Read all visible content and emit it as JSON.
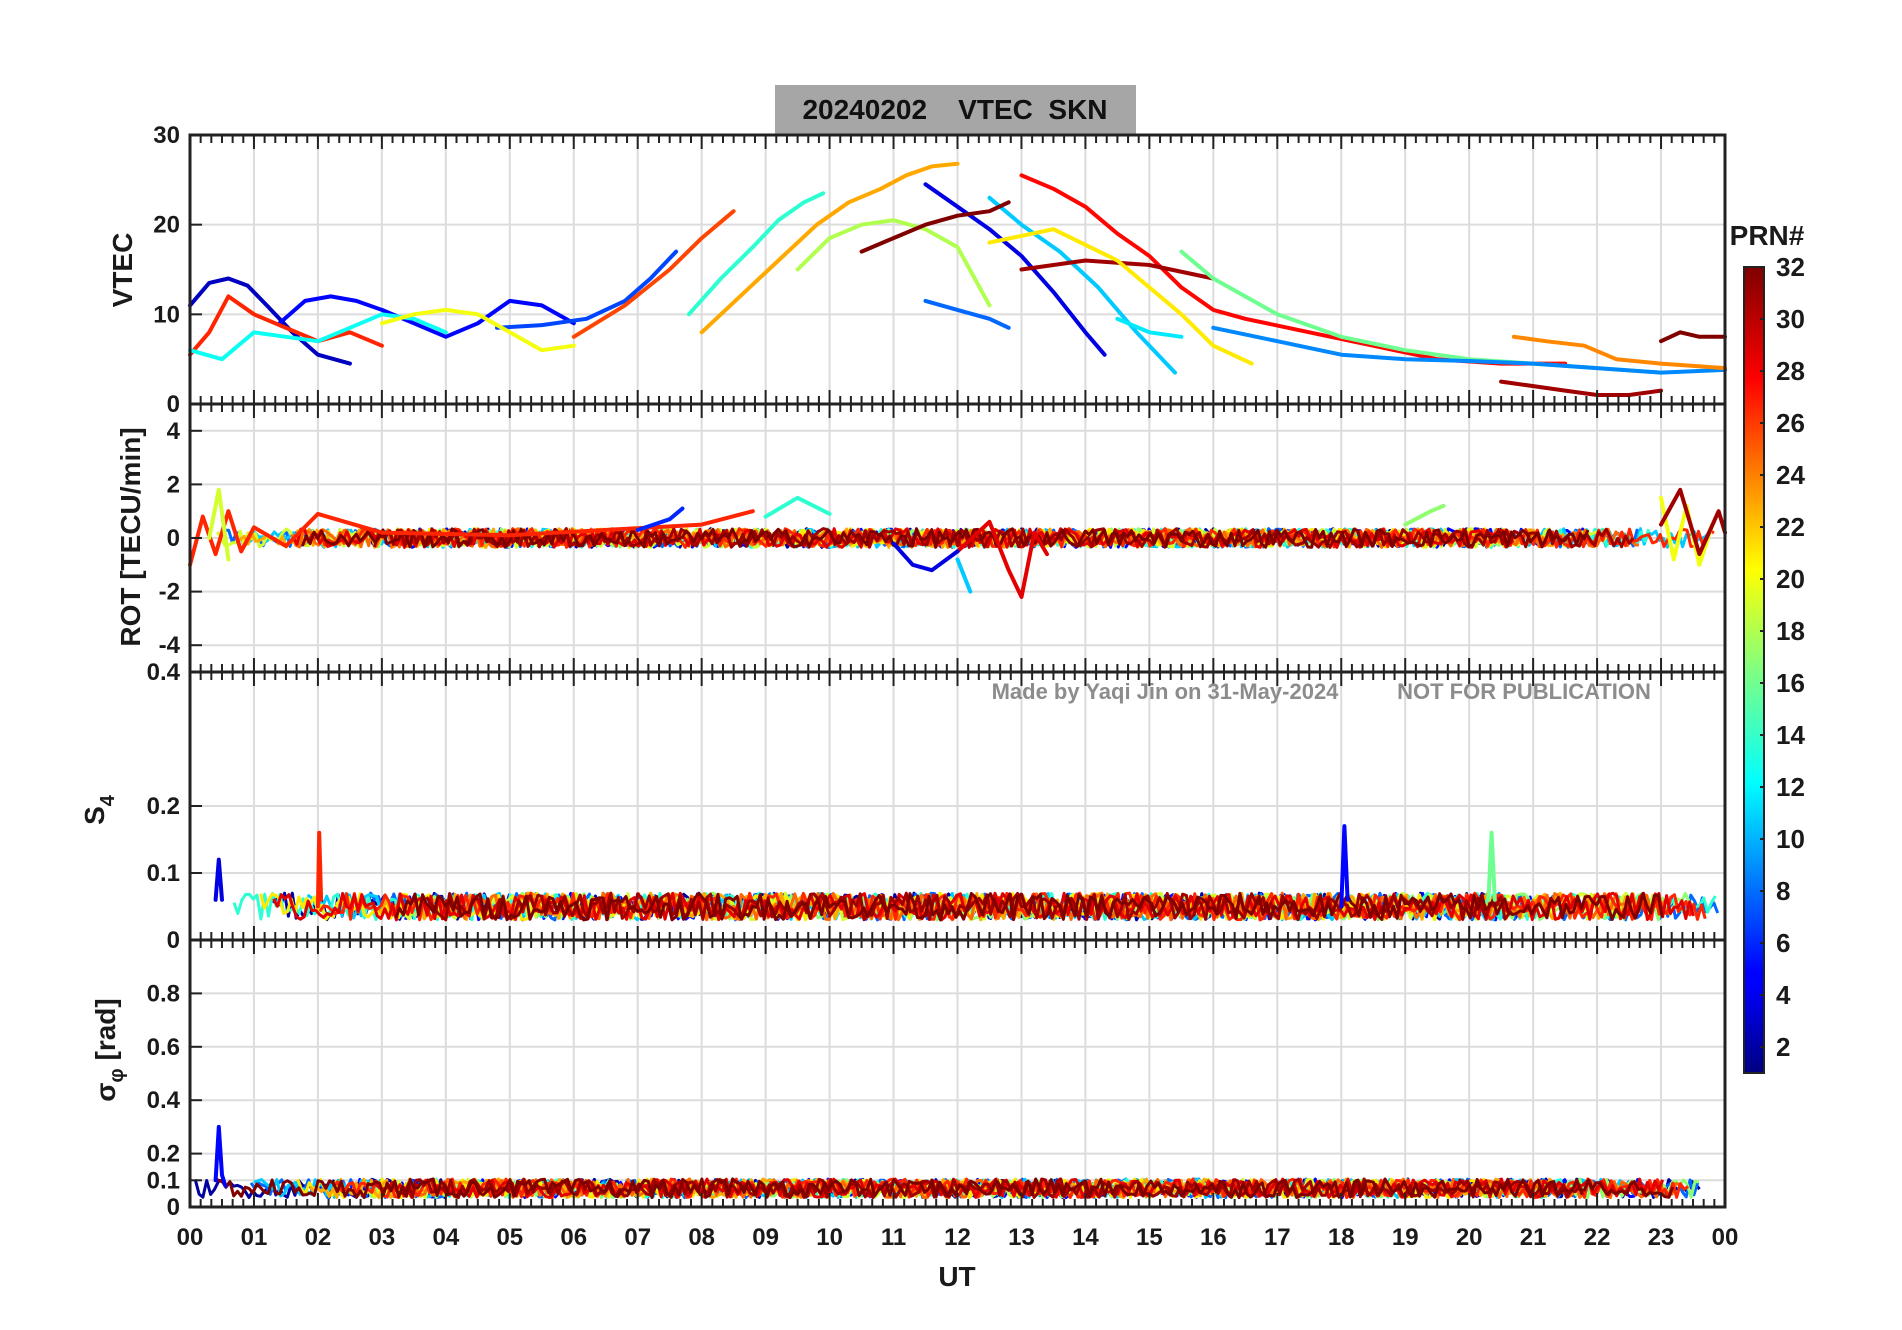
{
  "figure": {
    "title": "20240202    VTEC  SKN",
    "xlabel": "UT",
    "xticks": [
      "00",
      "01",
      "02",
      "03",
      "04",
      "05",
      "06",
      "07",
      "08",
      "09",
      "10",
      "11",
      "12",
      "13",
      "14",
      "15",
      "16",
      "17",
      "18",
      "19",
      "20",
      "21",
      "22",
      "23",
      "00"
    ],
    "watermark_author": "Made by Yaqi Jin on 31-May-2024",
    "watermark_notice": "NOT FOR PUBLICATION",
    "colorbar": {
      "label": "PRN#",
      "ticks": [
        "2",
        "4",
        "6",
        "8",
        "10",
        "12",
        "14",
        "16",
        "18",
        "20",
        "22",
        "24",
        "26",
        "28",
        "30",
        "32"
      ],
      "range": [
        1,
        32
      ],
      "colormap": "jet"
    }
  },
  "chart_data": [
    {
      "type": "line",
      "panel": "vtec",
      "ylabel": "VTEC",
      "ylim": [
        0,
        30
      ],
      "yticks": [
        {
          "v": 0,
          "label": "0"
        },
        {
          "v": 10,
          "label": "10"
        },
        {
          "v": 20,
          "label": "20"
        },
        {
          "v": 30,
          "label": "30"
        }
      ],
      "xlim": [
        0,
        24
      ],
      "series": [
        {
          "prn": 3,
          "x": [
            0.0,
            0.3,
            0.6,
            0.9,
            1.2,
            1.6,
            2.0,
            2.5
          ],
          "y": [
            11.0,
            13.5,
            14.0,
            13.2,
            11.0,
            8.0,
            5.5,
            4.5
          ]
        },
        {
          "prn": 5,
          "x": [
            1.4,
            1.8,
            2.2,
            2.6,
            3.0,
            3.5,
            4.0,
            4.5,
            5.0,
            5.5,
            6.0
          ],
          "y": [
            9.0,
            11.5,
            12.0,
            11.5,
            10.5,
            9.0,
            7.5,
            9.0,
            11.5,
            11.0,
            9.0
          ]
        },
        {
          "prn": 7,
          "x": [
            4.8,
            5.5,
            6.2,
            6.8,
            7.2,
            7.6
          ],
          "y": [
            8.5,
            8.8,
            9.5,
            11.5,
            14.0,
            17.0
          ]
        },
        {
          "prn": 14,
          "x": [
            7.8,
            8.3,
            8.8,
            9.2,
            9.6,
            9.9
          ],
          "y": [
            10.0,
            14.0,
            17.5,
            20.5,
            22.5,
            23.5
          ]
        },
        {
          "prn": 18,
          "x": [
            9.5,
            10.0,
            10.5,
            11.0,
            11.5,
            12.0,
            12.5
          ],
          "y": [
            15.0,
            18.5,
            20.0,
            20.5,
            19.5,
            17.5,
            11.0
          ]
        },
        {
          "prn": 23,
          "x": [
            8.0,
            8.6,
            9.2,
            9.8,
            10.3,
            10.8,
            11.2,
            11.6,
            12.0
          ],
          "y": [
            8.0,
            12.0,
            16.0,
            20.0,
            22.5,
            24.0,
            25.5,
            26.5,
            26.8
          ]
        },
        {
          "prn": 26,
          "x": [
            6.0,
            6.8,
            7.5,
            8.0,
            8.5
          ],
          "y": [
            7.5,
            11.0,
            15.0,
            18.5,
            21.5
          ]
        },
        {
          "prn": 11,
          "x": [
            12.5,
            13.0,
            13.6,
            14.2,
            14.8,
            15.4
          ],
          "y": [
            23.0,
            20.0,
            17.0,
            13.0,
            8.0,
            3.5
          ]
        },
        {
          "prn": 4,
          "x": [
            11.5,
            12.0,
            12.5,
            13.0,
            13.5,
            14.0,
            14.3
          ],
          "y": [
            24.5,
            22.0,
            19.5,
            16.5,
            12.5,
            8.0,
            5.5
          ]
        },
        {
          "prn": 28,
          "x": [
            13.0,
            13.5,
            14.0,
            14.5,
            15.0,
            15.5,
            16.0,
            16.5,
            17.5,
            18.5,
            19.5,
            20.5,
            21.5
          ],
          "y": [
            25.5,
            24.0,
            22.0,
            19.0,
            16.5,
            13.0,
            10.5,
            9.5,
            8.0,
            6.5,
            5.0,
            4.5,
            4.5
          ]
        },
        {
          "prn": 32,
          "x": [
            10.5,
            11.0,
            11.5,
            12.0,
            12.5,
            12.8
          ],
          "y": [
            17.0,
            18.5,
            20.0,
            21.0,
            21.5,
            22.5
          ]
        },
        {
          "prn": 31,
          "x": [
            13.0,
            14.0,
            15.0,
            16.0
          ],
          "y": [
            15.0,
            16.0,
            15.5,
            14.0
          ]
        },
        {
          "prn": 16,
          "x": [
            15.5,
            16.0,
            17.0,
            18.0,
            19.0,
            20.0,
            21.0,
            22.0,
            23.0
          ],
          "y": [
            17.0,
            14.0,
            10.0,
            7.5,
            6.0,
            5.0,
            4.5,
            4.0,
            3.5
          ]
        },
        {
          "prn": 21,
          "x": [
            12.5,
            13.5,
            14.5,
            15.5,
            16.0,
            16.6
          ],
          "y": [
            18.0,
            19.5,
            16.0,
            10.0,
            6.5,
            4.5
          ]
        },
        {
          "prn": 9,
          "x": [
            16.0,
            17.0,
            18.0,
            19.0,
            20.0,
            21.0,
            22.0,
            23.0,
            24.0
          ],
          "y": [
            8.5,
            7.0,
            5.5,
            5.0,
            4.8,
            4.5,
            4.0,
            3.5,
            3.8
          ]
        },
        {
          "prn": 24,
          "x": [
            20.7,
            21.2,
            21.8,
            22.3,
            23.0,
            24.0
          ],
          "y": [
            7.5,
            7.0,
            6.5,
            5.0,
            4.5,
            4.0
          ]
        },
        {
          "prn": 31,
          "x": [
            20.5,
            21.5,
            22.0,
            22.5,
            23.0
          ],
          "y": [
            2.5,
            1.5,
            1.0,
            1.0,
            1.5
          ]
        },
        {
          "prn": 32,
          "x": [
            23.0,
            23.3,
            23.6,
            24.0
          ],
          "y": [
            7.0,
            8.0,
            7.5,
            7.5
          ]
        },
        {
          "prn": 27,
          "x": [
            0.0,
            0.3,
            0.6,
            1.0,
            1.5,
            2.0,
            2.5,
            3.0
          ],
          "y": [
            5.5,
            8.0,
            12.0,
            10.0,
            8.5,
            7.0,
            8.0,
            6.5
          ]
        },
        {
          "prn": 13,
          "x": [
            0.0,
            0.5,
            1.0,
            1.5,
            2.0,
            2.5,
            3.0,
            3.5,
            4.0
          ],
          "y": [
            6.0,
            5.0,
            8.0,
            7.5,
            7.0,
            8.5,
            10.0,
            9.5,
            8.0
          ]
        },
        {
          "prn": 20,
          "x": [
            3.0,
            3.5,
            4.0,
            4.5,
            5.0,
            5.5,
            6.0
          ],
          "y": [
            9.0,
            10.0,
            10.5,
            10.0,
            8.0,
            6.0,
            6.5
          ]
        },
        {
          "prn": 8,
          "x": [
            11.5,
            12.0,
            12.5,
            12.8
          ],
          "y": [
            11.5,
            10.5,
            9.5,
            8.5
          ]
        },
        {
          "prn": 12,
          "x": [
            14.5,
            15.0,
            15.5
          ],
          "y": [
            9.5,
            8.0,
            7.5
          ]
        }
      ]
    },
    {
      "type": "line",
      "panel": "rot",
      "ylabel": "ROT [TECU/min]",
      "ylim": [
        -5,
        5
      ],
      "yticks": [
        {
          "v": -4,
          "label": "-4"
        },
        {
          "v": -2,
          "label": "-2"
        },
        {
          "v": 0,
          "label": "0"
        },
        {
          "v": 2,
          "label": "2"
        },
        {
          "v": 4,
          "label": "4"
        }
      ],
      "xlim": [
        0,
        24
      ],
      "series": [
        {
          "prn": 27,
          "x": [
            0.0,
            0.2,
            0.4,
            0.6,
            0.8,
            1.0,
            1.5,
            2.0,
            3.0,
            5.0,
            8.0,
            8.8
          ],
          "y": [
            -1.0,
            0.8,
            -0.6,
            1.0,
            -0.5,
            0.4,
            -0.3,
            0.9,
            0.2,
            0.1,
            0.5,
            1.0
          ]
        },
        {
          "prn": 19,
          "x": [
            0.3,
            0.45,
            0.6
          ],
          "y": [
            0.0,
            1.8,
            -0.8
          ]
        },
        {
          "prn": 29,
          "x": [
            12.0,
            12.5,
            12.8,
            13.0,
            13.2,
            13.4
          ],
          "y": [
            -0.5,
            0.6,
            -1.2,
            -2.2,
            0.2,
            -0.6
          ]
        },
        {
          "prn": 4,
          "x": [
            11.0,
            11.3,
            11.6,
            12.0
          ],
          "y": [
            -0.2,
            -1.0,
            -1.2,
            -0.5
          ]
        },
        {
          "prn": 11,
          "x": [
            12.0,
            12.2
          ],
          "y": [
            -0.8,
            -2.0
          ]
        },
        {
          "prn": 20,
          "x": [
            23.0,
            23.2,
            23.4,
            23.6,
            23.8
          ],
          "y": [
            1.5,
            -0.8,
            1.2,
            -1.0,
            0.5
          ]
        },
        {
          "prn": 31,
          "x": [
            23.0,
            23.3,
            23.6,
            23.9,
            24.0
          ],
          "y": [
            0.5,
            1.8,
            -0.6,
            1.0,
            0.2
          ]
        },
        {
          "prn": 14,
          "x": [
            9.0,
            9.5,
            10.0
          ],
          "y": [
            0.8,
            1.5,
            0.9
          ]
        },
        {
          "prn": 6,
          "x": [
            7.0,
            7.5,
            7.7
          ],
          "y": [
            0.3,
            0.7,
            1.1
          ]
        },
        {
          "prn": 17,
          "x": [
            19.0,
            19.4,
            19.6
          ],
          "y": [
            0.5,
            1.0,
            1.2
          ]
        }
      ]
    },
    {
      "type": "line",
      "panel": "s4",
      "ylabel": "S4",
      "ylim": [
        0,
        0.4
      ],
      "yticks": [
        {
          "v": 0,
          "label": "0"
        },
        {
          "v": 0.1,
          "label": "0.1"
        },
        {
          "v": 0.2,
          "label": "0.2"
        },
        {
          "v": 0.4,
          "label": "0.4"
        }
      ],
      "xlim": [
        0,
        24
      ],
      "series": [
        {
          "prn": 27,
          "x": [
            2.0,
            2.02,
            2.05
          ],
          "y": [
            0.05,
            0.16,
            0.06
          ]
        },
        {
          "prn": 5,
          "x": [
            18.0,
            18.05,
            18.1
          ],
          "y": [
            0.05,
            0.17,
            0.06
          ]
        },
        {
          "prn": 16,
          "x": [
            20.3,
            20.35,
            20.4
          ],
          "y": [
            0.06,
            0.16,
            0.06
          ]
        },
        {
          "prn": 4,
          "x": [
            0.4,
            0.45,
            0.5
          ],
          "y": [
            0.06,
            0.12,
            0.06
          ]
        }
      ]
    },
    {
      "type": "line",
      "panel": "sigma_phi",
      "ylabel": "σφ [rad]",
      "ylim": [
        0,
        1
      ],
      "yticks": [
        {
          "v": 0,
          "label": "0"
        },
        {
          "v": 0.1,
          "label": "0.1"
        },
        {
          "v": 0.2,
          "label": "0.2"
        },
        {
          "v": 0.4,
          "label": "0.4"
        },
        {
          "v": 0.6,
          "label": "0.6"
        },
        {
          "v": 0.8,
          "label": "0.8"
        }
      ],
      "xlim": [
        0,
        24
      ],
      "series": [
        {
          "prn": 5,
          "x": [
            0.4,
            0.45,
            0.5,
            0.55
          ],
          "y": [
            0.1,
            0.3,
            0.12,
            0.08
          ]
        }
      ]
    }
  ]
}
